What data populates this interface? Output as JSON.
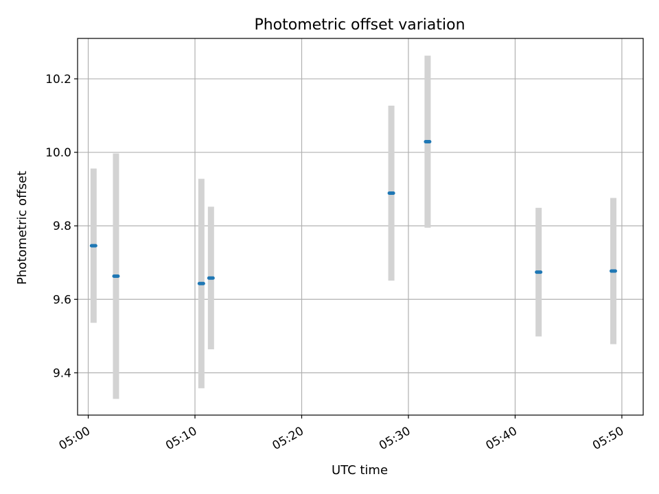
{
  "chart_data": {
    "type": "scatter",
    "title": "Photometric offset variation",
    "xlabel": "UTC time",
    "ylabel": "Photometric offset",
    "x_unit": "minutes after 05:00 UTC",
    "xlim": [
      -1.0,
      52.0
    ],
    "ylim": [
      9.285,
      10.31
    ],
    "grid": true,
    "x_ticks": [
      {
        "value": 0,
        "label": "05:00"
      },
      {
        "value": 10,
        "label": "05:10"
      },
      {
        "value": 20,
        "label": "05:20"
      },
      {
        "value": 30,
        "label": "05:30"
      },
      {
        "value": 40,
        "label": "05:40"
      },
      {
        "value": 50,
        "label": "05:50"
      }
    ],
    "y_ticks": [
      {
        "value": 9.4,
        "label": "9.4"
      },
      {
        "value": 9.6,
        "label": "9.6"
      },
      {
        "value": 9.8,
        "label": "9.8"
      },
      {
        "value": 10.0,
        "label": "10.0"
      },
      {
        "value": 10.2,
        "label": "10.2"
      }
    ],
    "points": [
      {
        "x": 0.5,
        "y": 9.746,
        "err": 0.21
      },
      {
        "x": 2.6,
        "y": 9.663,
        "err": 0.334
      },
      {
        "x": 10.6,
        "y": 9.643,
        "err": 0.285
      },
      {
        "x": 11.5,
        "y": 9.658,
        "err": 0.194
      },
      {
        "x": 28.4,
        "y": 9.889,
        "err": 0.238
      },
      {
        "x": 31.8,
        "y": 10.029,
        "err": 0.234
      },
      {
        "x": 42.2,
        "y": 9.674,
        "err": 0.175
      },
      {
        "x": 49.2,
        "y": 9.677,
        "err": 0.199
      }
    ],
    "colors": {
      "marker": "#1f77b4",
      "errorbar": "#d3d3d3",
      "grid": "#b0b0b0",
      "axes": "#000000"
    }
  }
}
